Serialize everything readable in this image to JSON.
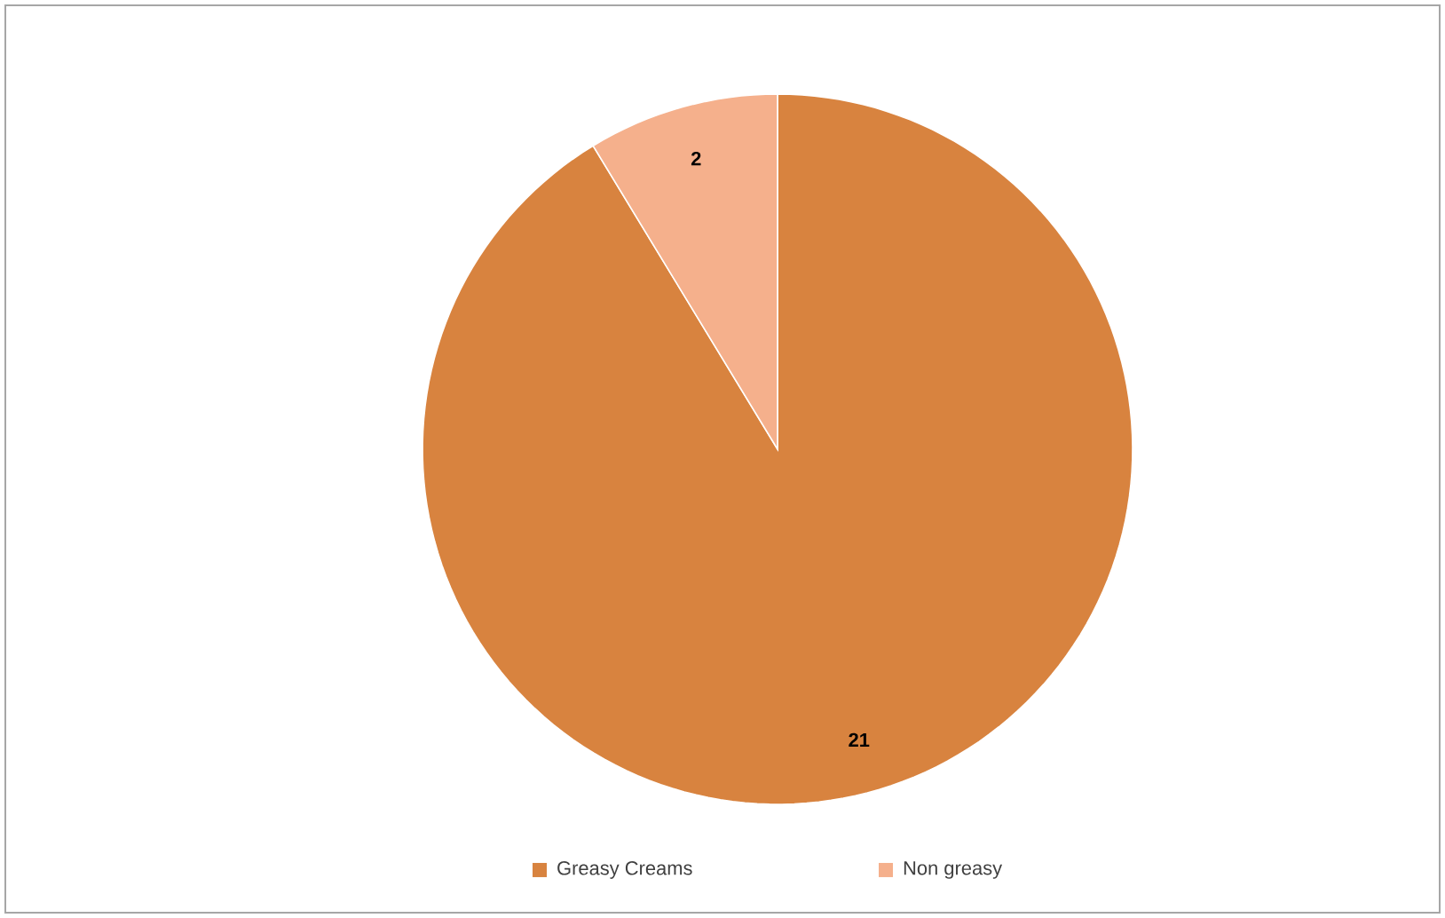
{
  "chart_data": {
    "type": "pie",
    "categories": [
      "Greasy Creams",
      "Non greasy"
    ],
    "values": [
      21,
      2
    ],
    "colors": [
      "#d8833f",
      "#f5b08c"
    ],
    "data_labels": true,
    "legend": "bottom"
  }
}
